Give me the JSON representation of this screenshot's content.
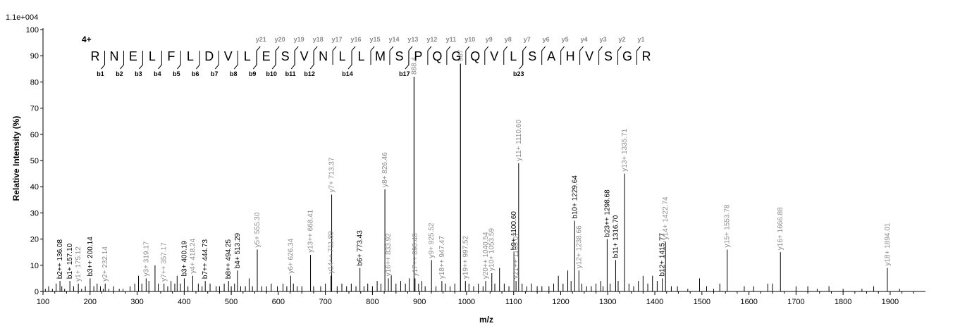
{
  "chart_data": {
    "type": "bar",
    "scale_label": "1.1e+004",
    "xlabel": "m/z",
    "ylabel": "Relative   Intensity (%)",
    "xlim": [
      100,
      1975
    ],
    "ylim": [
      0,
      100
    ],
    "x_ticks": [
      100,
      200,
      300,
      400,
      500,
      600,
      700,
      800,
      900,
      1000,
      1100,
      1200,
      1300,
      1400,
      1500,
      1600,
      1700,
      1800,
      1900
    ],
    "y_ticks": [
      0,
      10,
      20,
      30,
      40,
      50,
      60,
      70,
      80,
      90,
      100
    ],
    "charge_state": "4+",
    "sequence": [
      "R",
      "N",
      "E",
      "L",
      "F",
      "L",
      "D",
      "V",
      "L",
      "E",
      "S",
      "V",
      "N",
      "L",
      "L",
      "M",
      "S",
      "P",
      "Q",
      "G",
      "Q",
      "V",
      "L",
      "S",
      "A",
      "H",
      "V",
      "S",
      "G",
      "R"
    ],
    "b_ion_labels": [
      {
        "text": "b1",
        "after": 0
      },
      {
        "text": "b2",
        "after": 1
      },
      {
        "text": "b3",
        "after": 2
      },
      {
        "text": "b4",
        "after": 3
      },
      {
        "text": "b5",
        "after": 4
      },
      {
        "text": "b6",
        "after": 5
      },
      {
        "text": "b7",
        "after": 6
      },
      {
        "text": "b8",
        "after": 7
      },
      {
        "text": "b9",
        "after": 8
      },
      {
        "text": "b10",
        "after": 9
      },
      {
        "text": "b11",
        "after": 10
      },
      {
        "text": "b12",
        "after": 11
      },
      {
        "text": "b14",
        "after": 13
      },
      {
        "text": "b17",
        "after": 16
      },
      {
        "text": "b23",
        "after": 22
      }
    ],
    "y_ion_labels": [
      {
        "text": "y21",
        "after": 8
      },
      {
        "text": "y20",
        "after": 9
      },
      {
        "text": "y19",
        "after": 10
      },
      {
        "text": "y18",
        "after": 11
      },
      {
        "text": "y17",
        "after": 12
      },
      {
        "text": "y16",
        "after": 13
      },
      {
        "text": "y15",
        "after": 14
      },
      {
        "text": "y14",
        "after": 15
      },
      {
        "text": "y13",
        "after": 16
      },
      {
        "text": "y12",
        "after": 17
      },
      {
        "text": "y11",
        "after": 18
      },
      {
        "text": "y10",
        "after": 19
      },
      {
        "text": "y9",
        "after": 20
      },
      {
        "text": "y8",
        "after": 21
      },
      {
        "text": "y7",
        "after": 22
      },
      {
        "text": "y6",
        "after": 23
      },
      {
        "text": "y5",
        "after": 24
      },
      {
        "text": "y4",
        "after": 25
      },
      {
        "text": "y3",
        "after": 26
      },
      {
        "text": "y2",
        "after": 27
      },
      {
        "text": "y1",
        "after": 28
      }
    ],
    "labeled_peaks": [
      {
        "x": 136.08,
        "y": 4,
        "label": "b2++ 136.08",
        "ion": "b"
      },
      {
        "x": 157.1,
        "y": 4,
        "label": "b1+ 157.10",
        "ion": "b"
      },
      {
        "x": 175.12,
        "y": 3,
        "label": "y1+ 175.12",
        "ion": "y"
      },
      {
        "x": 200.14,
        "y": 5,
        "label": "b3++ 200.14",
        "ion": "b"
      },
      {
        "x": 232.14,
        "y": 3,
        "label": "y2+ 232.14",
        "ion": "y"
      },
      {
        "x": 319.17,
        "y": 5,
        "label": "y3+ 319.17",
        "ion": "y"
      },
      {
        "x": 357.17,
        "y": 3,
        "label": "y7++ 357.17",
        "ion": "y"
      },
      {
        "x": 400.19,
        "y": 5,
        "label": "b3+ 400.19",
        "ion": "b"
      },
      {
        "x": 418.24,
        "y": 6,
        "label": "y4+ 418.24",
        "ion": "y"
      },
      {
        "x": 444.73,
        "y": 4,
        "label": "b7++ 444.73",
        "ion": "b"
      },
      {
        "x": 494.25,
        "y": 4,
        "label": "b8++ 494.25",
        "ion": "b"
      },
      {
        "x": 513.29,
        "y": 8,
        "label": "b4+ 513.29",
        "ion": "b"
      },
      {
        "x": 555.3,
        "y": 16,
        "label": "y5+ 555.30",
        "ion": "y"
      },
      {
        "x": 626.34,
        "y": 6,
        "label": "y6+ 626.34",
        "ion": "y"
      },
      {
        "x": 668.41,
        "y": 14,
        "label": "y13++ 668.41",
        "ion": "y"
      },
      {
        "x": 711.89,
        "y": 6,
        "label": "y14++ 711.89",
        "ion": "y"
      },
      {
        "x": 713.37,
        "y": 37,
        "label": "y7+ 713.37",
        "ion": "y"
      },
      {
        "x": 773.43,
        "y": 9,
        "label": "b6+ 773.43",
        "ion": "b"
      },
      {
        "x": 826.46,
        "y": 39,
        "label": "y8+ 826.46",
        "ion": "y"
      },
      {
        "x": 833.92,
        "y": 5,
        "label": "y16++ 833.92",
        "ion": "y"
      },
      {
        "x": 888.4,
        "y": 82,
        "label": "888.4",
        "ion": "y"
      },
      {
        "x": 890.48,
        "y": 5,
        "label": "y17++ 890.48",
        "ion": "y"
      },
      {
        "x": 925.52,
        "y": 12,
        "label": "y9+ 925.52",
        "ion": "y"
      },
      {
        "x": 947.47,
        "y": 4,
        "label": "y18++ 947.47",
        "ion": "y"
      },
      {
        "x": 987.0,
        "y": 87,
        "label": "987",
        "ion": "y"
      },
      {
        "x": 997.52,
        "y": 4,
        "label": "y19++ 997.52",
        "ion": "y"
      },
      {
        "x": 1040.54,
        "y": 4,
        "label": "y20++ 1040.54",
        "ion": "y"
      },
      {
        "x": 1053.59,
        "y": 7,
        "label": "y10+ 1053.59",
        "ion": "y"
      },
      {
        "x": 1100.6,
        "y": 15,
        "label": "b9+ 1100.60",
        "ion": "b"
      },
      {
        "x": 1105.07,
        "y": 4,
        "label": "y21++ 1105.07",
        "ion": "y"
      },
      {
        "x": 1110.6,
        "y": 49,
        "label": "y11+ 1110.60",
        "ion": "y"
      },
      {
        "x": 1229.64,
        "y": 27,
        "label": "b10+ 1229.64",
        "ion": "b"
      },
      {
        "x": 1238.66,
        "y": 8,
        "label": "y12+ 1238.66",
        "ion": "y"
      },
      {
        "x": 1298.68,
        "y": 20,
        "label": "b23++ 1298.68",
        "ion": "b"
      },
      {
        "x": 1316.7,
        "y": 12,
        "label": "b11+ 1316.70",
        "ion": "b"
      },
      {
        "x": 1335.71,
        "y": 45,
        "label": "y13+ 1335.71",
        "ion": "y"
      },
      {
        "x": 1415.77,
        "y": 5,
        "label": "b12+ 1415.77",
        "ion": "b"
      },
      {
        "x": 1422.74,
        "y": 19,
        "label": "y14+ 1422.74",
        "ion": "y"
      },
      {
        "x": 1553.78,
        "y": 16,
        "label": "y15+ 1553.78",
        "ion": "y"
      },
      {
        "x": 1666.88,
        "y": 15,
        "label": "y16+ 1666.88",
        "ion": "y"
      },
      {
        "x": 1894.01,
        "y": 9,
        "label": "y18+ 1894.01",
        "ion": "y"
      }
    ],
    "unlabeled_peaks": [
      [
        105,
        1
      ],
      [
        112,
        2
      ],
      [
        120,
        1
      ],
      [
        128,
        3
      ],
      [
        140,
        2
      ],
      [
        146,
        1
      ],
      [
        165,
        2
      ],
      [
        182,
        1
      ],
      [
        190,
        2
      ],
      [
        208,
        2
      ],
      [
        215,
        3
      ],
      [
        222,
        2
      ],
      [
        228,
        1
      ],
      [
        240,
        1
      ],
      [
        250,
        2
      ],
      [
        262,
        1
      ],
      [
        270,
        1
      ],
      [
        285,
        2
      ],
      [
        295,
        3
      ],
      [
        303,
        6
      ],
      [
        310,
        3
      ],
      [
        325,
        4
      ],
      [
        338,
        10
      ],
      [
        345,
        3
      ],
      [
        365,
        2
      ],
      [
        372,
        4
      ],
      [
        380,
        3
      ],
      [
        385,
        6
      ],
      [
        392,
        3
      ],
      [
        408,
        2
      ],
      [
        430,
        3
      ],
      [
        438,
        2
      ],
      [
        455,
        3
      ],
      [
        468,
        2
      ],
      [
        475,
        2
      ],
      [
        485,
        3
      ],
      [
        500,
        2
      ],
      [
        507,
        3
      ],
      [
        520,
        2
      ],
      [
        530,
        2
      ],
      [
        538,
        5
      ],
      [
        545,
        2
      ],
      [
        565,
        2
      ],
      [
        575,
        2
      ],
      [
        585,
        3
      ],
      [
        598,
        2
      ],
      [
        610,
        3
      ],
      [
        618,
        2
      ],
      [
        632,
        3
      ],
      [
        640,
        2
      ],
      [
        650,
        2
      ],
      [
        675,
        2
      ],
      [
        690,
        2
      ],
      [
        700,
        3
      ],
      [
        725,
        2
      ],
      [
        735,
        3
      ],
      [
        745,
        2
      ],
      [
        755,
        3
      ],
      [
        765,
        2
      ],
      [
        782,
        2
      ],
      [
        790,
        3
      ],
      [
        800,
        2
      ],
      [
        810,
        4
      ],
      [
        818,
        3
      ],
      [
        840,
        6
      ],
      [
        850,
        3
      ],
      [
        860,
        4
      ],
      [
        870,
        3
      ],
      [
        878,
        5
      ],
      [
        898,
        3
      ],
      [
        905,
        4
      ],
      [
        912,
        2
      ],
      [
        935,
        2
      ],
      [
        955,
        3
      ],
      [
        965,
        2
      ],
      [
        975,
        3
      ],
      [
        1005,
        3
      ],
      [
        1015,
        2
      ],
      [
        1025,
        3
      ],
      [
        1035,
        2
      ],
      [
        1060,
        3
      ],
      [
        1070,
        9
      ],
      [
        1080,
        3
      ],
      [
        1090,
        2
      ],
      [
        1118,
        3
      ],
      [
        1128,
        2
      ],
      [
        1138,
        3
      ],
      [
        1150,
        2
      ],
      [
        1160,
        2
      ],
      [
        1175,
        2
      ],
      [
        1185,
        3
      ],
      [
        1195,
        6
      ],
      [
        1205,
        3
      ],
      [
        1215,
        8
      ],
      [
        1222,
        4
      ],
      [
        1245,
        3
      ],
      [
        1255,
        2
      ],
      [
        1265,
        2
      ],
      [
        1275,
        3
      ],
      [
        1285,
        4
      ],
      [
        1290,
        2
      ],
      [
        1305,
        3
      ],
      [
        1322,
        4
      ],
      [
        1345,
        3
      ],
      [
        1355,
        2
      ],
      [
        1365,
        4
      ],
      [
        1375,
        6
      ],
      [
        1385,
        3
      ],
      [
        1395,
        6
      ],
      [
        1405,
        4
      ],
      [
        1435,
        2
      ],
      [
        1448,
        2
      ],
      [
        1470,
        1
      ],
      [
        1495,
        5
      ],
      [
        1510,
        2
      ],
      [
        1525,
        1
      ],
      [
        1538,
        3
      ],
      [
        1590,
        2
      ],
      [
        1610,
        2
      ],
      [
        1640,
        3
      ],
      [
        1650,
        3
      ],
      [
        1700,
        2
      ],
      [
        1725,
        2
      ],
      [
        1745,
        1
      ],
      [
        1770,
        2
      ],
      [
        1800,
        1
      ],
      [
        1840,
        1
      ],
      [
        1865,
        2
      ],
      [
        1920,
        1
      ]
    ],
    "colors": {
      "b_ion": "#000000",
      "y_ion": "#8c8c8c",
      "unlabeled": "#000000",
      "axis": "#000000"
    }
  }
}
